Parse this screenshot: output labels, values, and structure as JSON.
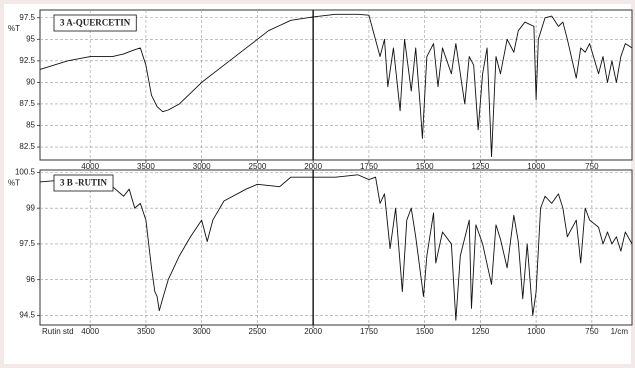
{
  "chart_data": [
    {
      "type": "line",
      "title": "3 A-QUERCETIN",
      "ylabel": "%T",
      "color": "#111111",
      "xlim": [
        4450,
        570
      ],
      "xticks": [
        4000,
        3500,
        3000,
        2500,
        2000,
        1750,
        1500,
        1250,
        1000,
        750
      ],
      "ylim": [
        81,
        98.4
      ],
      "yticks": [
        82.5,
        85,
        87.5,
        90,
        92.5,
        95,
        97.5
      ],
      "grid": true,
      "x": [
        4450,
        4200,
        4000,
        3800,
        3700,
        3600,
        3550,
        3500,
        3450,
        3400,
        3350,
        3300,
        3200,
        3000,
        2800,
        2600,
        2400,
        2300,
        2200,
        2000,
        1900,
        1800,
        1750,
        1700,
        1680,
        1665,
        1640,
        1610,
        1590,
        1560,
        1540,
        1520,
        1510,
        1490,
        1460,
        1440,
        1420,
        1380,
        1360,
        1320,
        1300,
        1280,
        1260,
        1240,
        1220,
        1200,
        1180,
        1160,
        1130,
        1100,
        1080,
        1050,
        1010,
        1000,
        990,
        960,
        930,
        900,
        880,
        860,
        820,
        800,
        780,
        760,
        720,
        700,
        680,
        660,
        640,
        620,
        600,
        570
      ],
      "values": [
        91.5,
        92.5,
        93,
        93,
        93.3,
        93.8,
        94,
        92,
        88.5,
        87.2,
        86.6,
        86.8,
        87.5,
        90,
        92,
        94,
        96,
        96.6,
        97.2,
        97.6,
        97.9,
        97.9,
        97.8,
        93,
        95,
        89.5,
        94,
        86.7,
        95,
        89,
        94,
        87.3,
        83.5,
        93,
        94.5,
        89.5,
        94,
        91,
        94.5,
        87.5,
        93,
        92,
        84.5,
        91,
        94,
        81.4,
        93,
        91,
        95,
        93.5,
        96,
        97,
        96.5,
        88,
        95,
        97.5,
        97.7,
        96.5,
        97,
        95,
        90.5,
        94,
        93.5,
        94.5,
        91,
        93,
        90,
        92.5,
        90,
        93,
        94.5,
        94
      ]
    },
    {
      "type": "line",
      "title": "3 B -RUTIN",
      "ylabel": "%T",
      "xlabel": "1/cm",
      "footer": "Rutin std",
      "color": "#111111",
      "xlim": [
        4450,
        570
      ],
      "xticks": [
        4000,
        3500,
        3000,
        2500,
        2000,
        1750,
        1500,
        1250,
        1000,
        750
      ],
      "ylim": [
        94.1,
        100.6
      ],
      "yticks": [
        94.5,
        96,
        97.5,
        99,
        100.5
      ],
      "grid": true,
      "x": [
        4450,
        4200,
        4000,
        3800,
        3700,
        3650,
        3600,
        3550,
        3500,
        3450,
        3420,
        3400,
        3380,
        3350,
        3300,
        3200,
        3100,
        3000,
        2950,
        2900,
        2800,
        2600,
        2500,
        2300,
        2200,
        2000,
        1900,
        1800,
        1750,
        1720,
        1700,
        1680,
        1655,
        1630,
        1600,
        1580,
        1560,
        1540,
        1505,
        1490,
        1460,
        1450,
        1420,
        1380,
        1360,
        1340,
        1300,
        1290,
        1270,
        1240,
        1200,
        1180,
        1160,
        1130,
        1100,
        1080,
        1060,
        1040,
        1015,
        1000,
        980,
        960,
        930,
        900,
        880,
        860,
        820,
        800,
        780,
        760,
        720,
        700,
        680,
        660,
        640,
        620,
        600,
        570
      ],
      "values": [
        100.1,
        100.2,
        100,
        99.9,
        99.5,
        99.8,
        99,
        99.2,
        98.5,
        96.5,
        95.5,
        95.3,
        94.7,
        95.2,
        96,
        97,
        97.8,
        98.5,
        97.6,
        98.5,
        99.3,
        99.8,
        100,
        99.9,
        100.3,
        100.3,
        100.3,
        100.4,
        100.2,
        100.3,
        99.2,
        99.6,
        97.3,
        99,
        95.5,
        98.5,
        99,
        97.8,
        95.3,
        97,
        98.8,
        96.7,
        98,
        97.5,
        94.3,
        97,
        98.5,
        94.8,
        98.3,
        97.5,
        95.8,
        98.3,
        97.7,
        96.5,
        98.7,
        97.6,
        95.2,
        97.5,
        94.5,
        95.5,
        99,
        99.5,
        99.2,
        99.6,
        99,
        97.8,
        98.5,
        96.7,
        99,
        98.5,
        98.2,
        97.5,
        98,
        97.5,
        97.8,
        97.2,
        98,
        97.5
      ]
    }
  ]
}
